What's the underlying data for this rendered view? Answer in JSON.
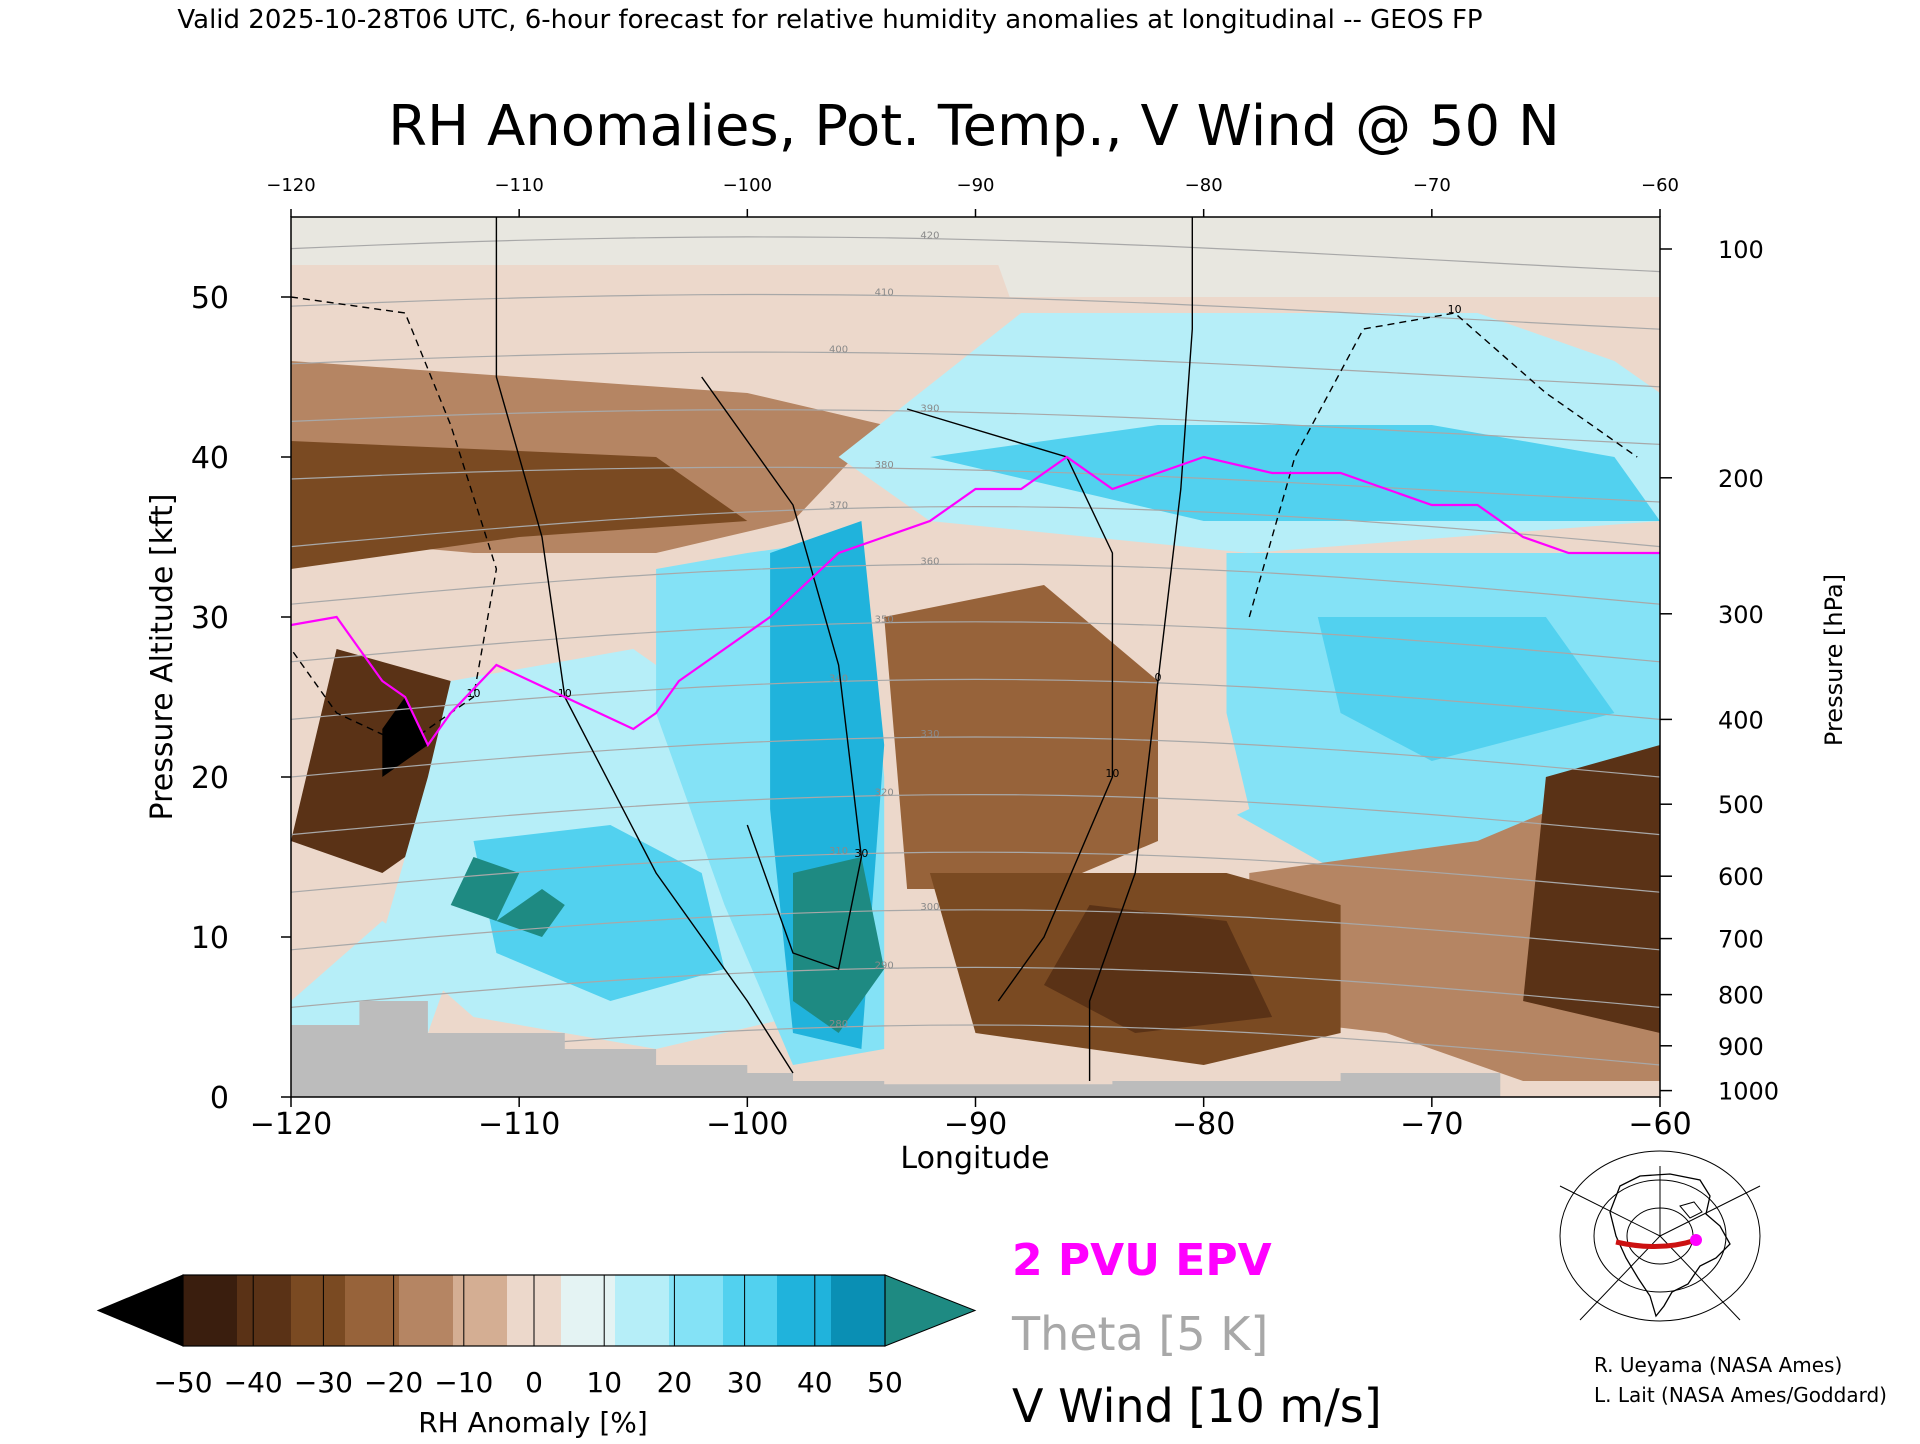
{
  "header": {
    "valid_line": "Valid 2025-10-28T06 UTC, 6-hour forecast for relative humidity anomalies at longitudinal -- GEOS FP"
  },
  "chart_data": {
    "type": "heatmap",
    "title": "RH Anomalies, Pot. Temp., V Wind @ 50 N",
    "xlabel": "Longitude",
    "ylabel_left": "Pressure Altitude [kft]",
    "ylabel_right": "Pressure [hPa]",
    "xlim": [
      -120,
      -60
    ],
    "ylim": [
      0,
      55
    ],
    "x_ticks": [
      -120,
      -110,
      -100,
      -90,
      -80,
      -70,
      -60
    ],
    "x_tick_labels": [
      "−120",
      "−110",
      "−100",
      "−90",
      "−80",
      "−70",
      "−60"
    ],
    "top_tick_labels": [
      "−120",
      "−110",
      "−100",
      "−90",
      "−80",
      "−70",
      "−60"
    ],
    "y_ticks": [
      0,
      10,
      20,
      30,
      40,
      50
    ],
    "y_tick_labels": [
      "0",
      "10",
      "20",
      "30",
      "40",
      "50"
    ],
    "pressure_ticks": [
      {
        "hpa": 100,
        "kft": 53.0,
        "label": "100"
      },
      {
        "hpa": 200,
        "kft": 38.7,
        "label": "200"
      },
      {
        "hpa": 300,
        "kft": 30.2,
        "label": "300"
      },
      {
        "hpa": 400,
        "kft": 23.6,
        "label": "400"
      },
      {
        "hpa": 500,
        "kft": 18.3,
        "label": "500"
      },
      {
        "hpa": 600,
        "kft": 13.8,
        "label": "600"
      },
      {
        "hpa": 700,
        "kft": 9.9,
        "label": "700"
      },
      {
        "hpa": 800,
        "kft": 6.4,
        "label": "800"
      },
      {
        "hpa": 900,
        "kft": 3.2,
        "label": "900"
      },
      {
        "hpa": 1000,
        "kft": 0.4,
        "label": "1000"
      }
    ],
    "colorbar": {
      "label": "RH Anomaly [%]",
      "tick_labels": [
        "−50",
        "−40",
        "−30",
        "−20",
        "−10",
        "0",
        "10",
        "20",
        "30",
        "40",
        "50"
      ],
      "colors": [
        "#3a1e0e",
        "#5a3216",
        "#7a4a22",
        "#97633a",
        "#b58563",
        "#d4ae93",
        "#ecd8cb",
        "#e4f3f3",
        "#b6eef8",
        "#84e2f6",
        "#52d1ef",
        "#20b3dc",
        "#0a8fb4"
      ],
      "under_color": "#000000",
      "over_color": "#1e8a82"
    },
    "rh_regions": [
      {
        "color": "#e8e7e0",
        "points": [
          [
            -120,
            55
          ],
          [
            -60,
            55
          ],
          [
            -60,
            50
          ],
          [
            -120,
            50
          ]
        ]
      },
      {
        "color": "#ecd8cb",
        "points": [
          [
            -120,
            52
          ],
          [
            -89,
            52
          ],
          [
            -88,
            48
          ],
          [
            -98,
            44
          ],
          [
            -120,
            44
          ]
        ]
      },
      {
        "color": "#b58563",
        "points": [
          [
            -120,
            46
          ],
          [
            -100,
            44
          ],
          [
            -94,
            42
          ],
          [
            -98,
            36
          ],
          [
            -104,
            34
          ],
          [
            -112,
            34
          ],
          [
            -120,
            35
          ]
        ]
      },
      {
        "color": "#7a4a22",
        "points": [
          [
            -120,
            41
          ],
          [
            -104,
            40
          ],
          [
            -100,
            36
          ],
          [
            -110,
            35
          ],
          [
            -120,
            33
          ]
        ]
      },
      {
        "color": "#5a3216",
        "points": [
          [
            -118,
            28
          ],
          [
            -113,
            26
          ],
          [
            -112,
            18
          ],
          [
            -116,
            14
          ],
          [
            -120,
            16
          ]
        ]
      },
      {
        "color": "#000000",
        "points": [
          [
            -116,
            23
          ],
          [
            -115,
            25
          ],
          [
            -114,
            22
          ],
          [
            -116,
            20
          ]
        ]
      },
      {
        "color": "#b6eef8",
        "points": [
          [
            -88,
            49
          ],
          [
            -68,
            49
          ],
          [
            -62,
            46
          ],
          [
            -60,
            44
          ],
          [
            -60,
            36
          ],
          [
            -78,
            34
          ],
          [
            -92,
            36
          ],
          [
            -96,
            40
          ]
        ]
      },
      {
        "color": "#52d1ef",
        "points": [
          [
            -92,
            40
          ],
          [
            -82,
            42
          ],
          [
            -70,
            42
          ],
          [
            -62,
            40
          ],
          [
            -60,
            36
          ],
          [
            -80,
            36
          ]
        ]
      },
      {
        "color": "#84e2f6",
        "points": [
          [
            -79,
            34
          ],
          [
            -60,
            34
          ],
          [
            -60,
            20
          ],
          [
            -64,
            17
          ],
          [
            -74,
            14
          ],
          [
            -79,
            18
          ]
        ]
      },
      {
        "color": "#52d1ef",
        "points": [
          [
            -75,
            30
          ],
          [
            -65,
            30
          ],
          [
            -62,
            24
          ],
          [
            -70,
            21
          ],
          [
            -74,
            24
          ]
        ]
      },
      {
        "color": "#b58563",
        "points": [
          [
            -78,
            14
          ],
          [
            -68,
            16
          ],
          [
            -63,
            19
          ],
          [
            -60,
            22
          ],
          [
            -60,
            1
          ],
          [
            -66,
            1
          ],
          [
            -72,
            4
          ],
          [
            -78,
            5
          ]
        ]
      },
      {
        "color": "#5a3216",
        "points": [
          [
            -65,
            20
          ],
          [
            -60,
            22
          ],
          [
            -60,
            4
          ],
          [
            -66,
            6
          ]
        ]
      },
      {
        "color": "#ecd8cb",
        "points": [
          [
            -94,
            33
          ],
          [
            -86,
            34
          ],
          [
            -80,
            30
          ],
          [
            -78,
            18
          ],
          [
            -84,
            14
          ],
          [
            -92,
            14
          ]
        ]
      },
      {
        "color": "#97633a",
        "points": [
          [
            -94,
            30
          ],
          [
            -87,
            32
          ],
          [
            -82,
            26
          ],
          [
            -82,
            16
          ],
          [
            -87,
            13
          ],
          [
            -93,
            13
          ]
        ]
      },
      {
        "color": "#7a4a22",
        "points": [
          [
            -92,
            14
          ],
          [
            -79,
            14
          ],
          [
            -74,
            12
          ],
          [
            -74,
            4
          ],
          [
            -80,
            2
          ],
          [
            -90,
            4
          ]
        ]
      },
      {
        "color": "#5a3216",
        "points": [
          [
            -85,
            12
          ],
          [
            -79,
            11
          ],
          [
            -77,
            5
          ],
          [
            -83,
            4
          ],
          [
            -87,
            7
          ]
        ]
      },
      {
        "color": "#b6eef8",
        "points": [
          [
            -113,
            26
          ],
          [
            -105,
            28
          ],
          [
            -101,
            24
          ],
          [
            -97,
            14
          ],
          [
            -98,
            5
          ],
          [
            -104,
            3
          ],
          [
            -112,
            5
          ],
          [
            -116,
            10
          ],
          [
            -114,
            20
          ]
        ]
      },
      {
        "color": "#52d1ef",
        "points": [
          [
            -112,
            16
          ],
          [
            -106,
            17
          ],
          [
            -102,
            14
          ],
          [
            -101,
            8
          ],
          [
            -106,
            6
          ],
          [
            -111,
            9
          ]
        ]
      },
      {
        "color": "#1e8a82",
        "points": [
          [
            -112,
            15
          ],
          [
            -110,
            14
          ],
          [
            -111,
            11
          ],
          [
            -113,
            12
          ]
        ]
      },
      {
        "color": "#1e8a82",
        "points": [
          [
            -109,
            13
          ],
          [
            -108,
            12
          ],
          [
            -109,
            10
          ],
          [
            -111,
            11
          ]
        ]
      },
      {
        "color": "#84e2f6",
        "points": [
          [
            -104,
            33
          ],
          [
            -100,
            34
          ],
          [
            -95,
            35
          ],
          [
            -94,
            20
          ],
          [
            -94,
            3
          ],
          [
            -98,
            2
          ],
          [
            -101,
            12
          ],
          [
            -104,
            24
          ]
        ]
      },
      {
        "color": "#20b3dc",
        "points": [
          [
            -99,
            34
          ],
          [
            -95,
            36
          ],
          [
            -94,
            22
          ],
          [
            -95,
            3
          ],
          [
            -98,
            4
          ],
          [
            -99,
            18
          ]
        ]
      },
      {
        "color": "#1e8a82",
        "points": [
          [
            -98,
            14
          ],
          [
            -95,
            15
          ],
          [
            -94,
            8
          ],
          [
            -96,
            4
          ],
          [
            -98,
            6
          ]
        ]
      },
      {
        "color": "#b6eef8",
        "points": [
          [
            -120,
            6
          ],
          [
            -116,
            11
          ],
          [
            -113,
            8
          ],
          [
            -114,
            4
          ],
          [
            -120,
            4
          ]
        ]
      }
    ],
    "terrain": [
      [
        -120,
        4.5
      ],
      [
        -117,
        4.5
      ],
      [
        -117,
        6
      ],
      [
        -114,
        6
      ],
      [
        -114,
        4
      ],
      [
        -108,
        4
      ],
      [
        -108,
        3
      ],
      [
        -104,
        3
      ],
      [
        -104,
        2
      ],
      [
        -100,
        2
      ],
      [
        -100,
        1.5
      ],
      [
        -98,
        1.5
      ],
      [
        -98,
        1
      ],
      [
        -94,
        1
      ],
      [
        -94,
        0.8
      ],
      [
        -84,
        0.8
      ],
      [
        -84,
        1
      ],
      [
        -74,
        1
      ],
      [
        -74,
        1.5
      ],
      [
        -67,
        1.5
      ],
      [
        -67,
        0
      ],
      [
        -120,
        0
      ]
    ],
    "epv_2pvu": [
      [
        -120,
        29.5
      ],
      [
        -118,
        30
      ],
      [
        -117,
        28
      ],
      [
        -116,
        26
      ],
      [
        -115,
        25
      ],
      [
        -114,
        22
      ],
      [
        -113,
        24
      ],
      [
        -111,
        27
      ],
      [
        -108,
        25
      ],
      [
        -105,
        23
      ],
      [
        -104,
        24
      ],
      [
        -103,
        26
      ],
      [
        -101,
        28
      ],
      [
        -99,
        30
      ],
      [
        -96,
        34
      ],
      [
        -94,
        35
      ],
      [
        -92,
        36
      ],
      [
        -90,
        38
      ],
      [
        -88,
        38
      ],
      [
        -86,
        40
      ],
      [
        -84,
        38
      ],
      [
        -82,
        39
      ],
      [
        -80,
        40
      ],
      [
        -77,
        39
      ],
      [
        -74,
        39
      ],
      [
        -72,
        38
      ],
      [
        -70,
        37
      ],
      [
        -68,
        37
      ],
      [
        -66,
        35
      ],
      [
        -64,
        34
      ],
      [
        -62,
        34
      ],
      [
        -60,
        34
      ]
    ],
    "theta_levels": [
      280,
      290,
      300,
      310,
      320,
      330,
      340,
      350,
      360,
      370,
      380,
      390,
      400,
      410,
      420
    ],
    "vwind_contours": [
      {
        "label": "0",
        "dashed": false,
        "points": [
          [
            -80.5,
            55
          ],
          [
            -80.5,
            48
          ],
          [
            -81,
            38
          ],
          [
            -82,
            26
          ],
          [
            -83,
            14
          ],
          [
            -85,
            6
          ],
          [
            -85,
            1
          ]
        ]
      },
      {
        "label": "10",
        "dashed": false,
        "points": [
          [
            -111,
            55
          ],
          [
            -111,
            45
          ],
          [
            -109,
            35
          ],
          [
            -108,
            25
          ],
          [
            -104,
            14
          ],
          [
            -100,
            6
          ],
          [
            -98,
            1.5
          ]
        ]
      },
      {
        "label": "30",
        "dashed": false,
        "points": [
          [
            -102,
            45
          ],
          [
            -98,
            37
          ],
          [
            -96,
            27
          ],
          [
            -95,
            15
          ],
          [
            -96,
            8
          ],
          [
            -98,
            9
          ],
          [
            -100,
            17
          ]
        ]
      },
      {
        "label": "10",
        "dashed": false,
        "points": [
          [
            -93,
            43
          ],
          [
            -86,
            40
          ],
          [
            -84,
            34
          ],
          [
            -84,
            20
          ],
          [
            -87,
            10
          ],
          [
            -89,
            6
          ]
        ]
      },
      {
        "label": "10",
        "dashed": true,
        "points": [
          [
            -120,
            50
          ],
          [
            -115,
            49
          ],
          [
            -113,
            42
          ],
          [
            -111,
            33
          ],
          [
            -112,
            25
          ],
          [
            -115,
            22
          ],
          [
            -118,
            24
          ],
          [
            -120,
            28
          ]
        ]
      },
      {
        "label": "10",
        "dashed": true,
        "points": [
          [
            -78,
            30
          ],
          [
            -76,
            40
          ],
          [
            -73,
            48
          ],
          [
            -69,
            49
          ],
          [
            -65,
            44
          ],
          [
            -61,
            40
          ]
        ]
      }
    ],
    "legend": {
      "epv": "2 PVU EPV",
      "theta": "Theta [5 K]",
      "vwind": "V Wind [10 m/s]",
      "epv_color": "#ff00ff",
      "theta_color": "#a8a8a8",
      "vwind_color": "#000000"
    }
  },
  "credits": {
    "line1": "R. Ueyama (NASA Ames)",
    "line2": "L. Lait (NASA Ames/Goddard)"
  }
}
